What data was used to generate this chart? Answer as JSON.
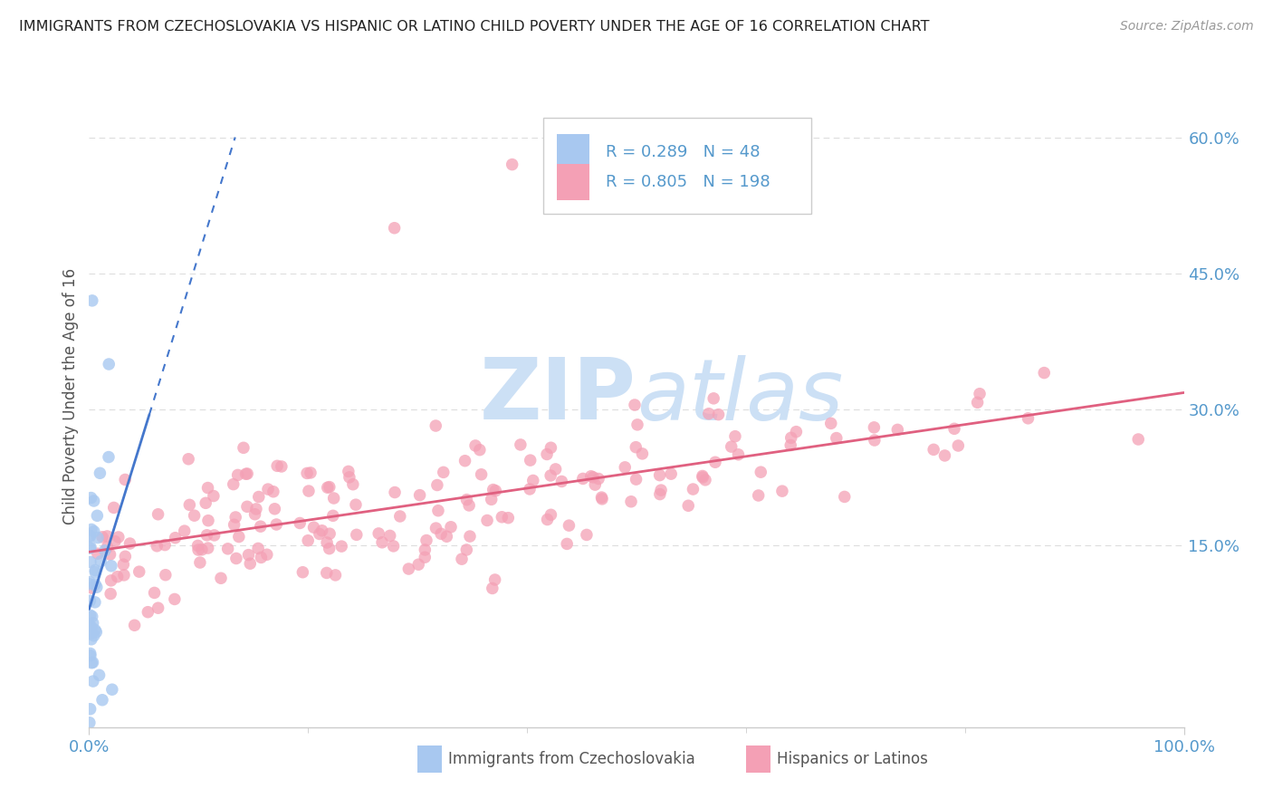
{
  "title": "IMMIGRANTS FROM CZECHOSLOVAKIA VS HISPANIC OR LATINO CHILD POVERTY UNDER THE AGE OF 16 CORRELATION CHART",
  "source": "Source: ZipAtlas.com",
  "ylabel": "Child Poverty Under the Age of 16",
  "xlim": [
    0,
    1.0
  ],
  "ylim": [
    -0.05,
    0.68
  ],
  "yticks": [
    0.15,
    0.3,
    0.45,
    0.6
  ],
  "ytick_labels": [
    "15.0%",
    "30.0%",
    "45.0%",
    "60.0%"
  ],
  "xtick_labels": [
    "0.0%",
    "100.0%"
  ],
  "xtick_positions": [
    0.0,
    1.0
  ],
  "legend_R1": "0.289",
  "legend_N1": "48",
  "legend_R2": "0.805",
  "legend_N2": "198",
  "scatter1_color": "#a8c8f0",
  "scatter2_color": "#f4a0b5",
  "line1_color": "#4477cc",
  "line2_color": "#e06080",
  "watermark_color": "#cce0f5",
  "background_color": "#ffffff",
  "grid_color": "#dddddd",
  "seed": 42
}
